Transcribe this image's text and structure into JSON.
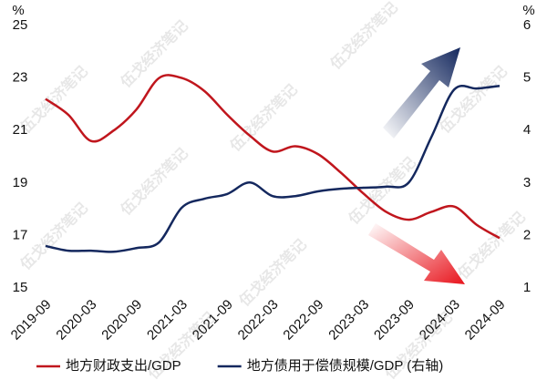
{
  "chart_data": {
    "type": "line",
    "watermark": "伍戈经济笔记",
    "y_unit": "%",
    "y2_unit": "%",
    "categories": [
      "2019-09",
      null,
      "2020-03",
      null,
      "2020-09",
      null,
      "2021-03",
      null,
      "2021-09",
      null,
      "2022-03",
      null,
      "2022-09",
      null,
      "2023-03",
      null,
      "2023-09",
      null,
      "2024-03",
      null,
      "2024-09"
    ],
    "series": [
      {
        "name": "地方财政支出/GDP",
        "color": "#c0161d",
        "values": [
          22.2,
          21.6,
          20.6,
          21.0,
          21.8,
          23.0,
          23.0,
          22.5,
          21.6,
          20.8,
          20.2,
          20.4,
          20.1,
          19.4,
          18.6,
          17.9,
          17.6,
          17.9,
          18.1,
          17.4,
          16.9
        ]
      },
      {
        "name": "地方债用于偿债规模/GDP (右轴)",
        "color": "#14285e",
        "axis": "y2",
        "values": [
          1.8,
          1.71,
          1.71,
          1.69,
          1.76,
          1.87,
          2.53,
          2.7,
          2.79,
          3.01,
          2.75,
          2.75,
          2.84,
          2.89,
          2.91,
          2.93,
          3.01,
          3.88,
          4.78,
          4.8,
          4.85
        ]
      }
    ],
    "ylim": [
      15,
      25
    ],
    "yticks": [
      15,
      17,
      19,
      21,
      23,
      25
    ],
    "y2lim": [
      1,
      6
    ],
    "y2ticks": [
      1,
      2,
      3,
      4,
      5,
      6
    ]
  }
}
